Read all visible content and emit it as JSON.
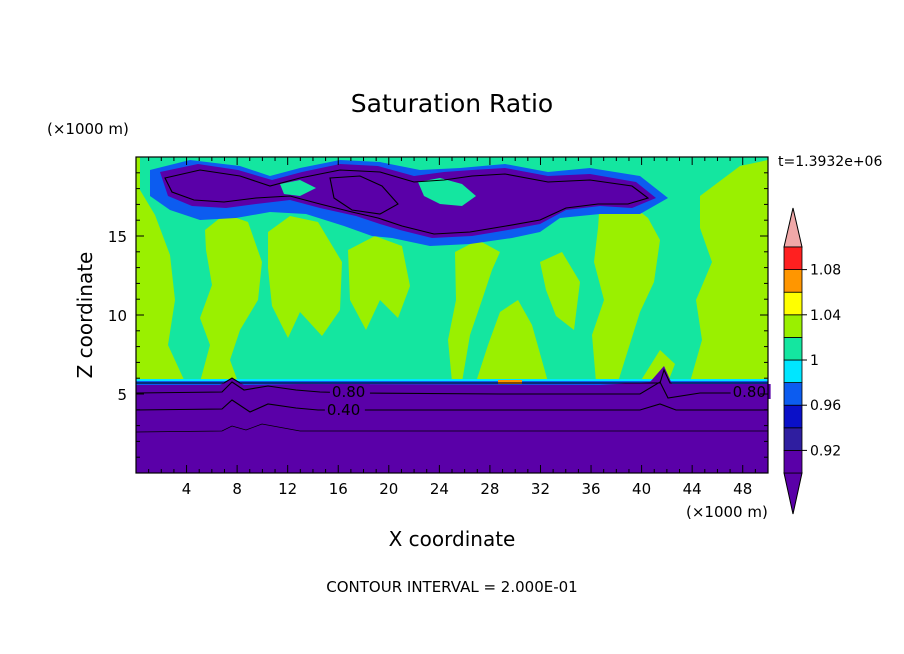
{
  "chart_data": {
    "type": "heatmap",
    "title": "Saturation Ratio",
    "xlabel": "X coordinate",
    "ylabel": "Z coordinate",
    "x_unit": "(×1000 m)",
    "y_unit": "(×1000 m)",
    "time_label": "t=1.3932e+06",
    "footer": "CONTOUR INTERVAL = 2.000E-01",
    "xlim": [
      0,
      50
    ],
    "ylim": [
      0,
      20
    ],
    "x_ticks": [
      4,
      8,
      12,
      16,
      20,
      24,
      28,
      32,
      36,
      40,
      44,
      48
    ],
    "y_ticks": [
      5,
      10,
      15
    ],
    "colorbar": {
      "bins": [
        {
          "color": "#5a00a8"
        },
        {
          "color": "#2f1ea0"
        },
        {
          "color": "#0a10c8"
        },
        {
          "color": "#0c5cf0"
        },
        {
          "color": "#00e6ff"
        },
        {
          "color": "#14e6a0"
        },
        {
          "color": "#9af000"
        },
        {
          "color": "#ffff00"
        },
        {
          "color": "#ff9600"
        },
        {
          "color": "#ff2020"
        }
      ],
      "under_color": "#5a00a8",
      "over_color": "#f0a8a8",
      "labels": [
        {
          "value": 0.92,
          "text": "0.92"
        },
        {
          "value": 0.96,
          "text": "0.96"
        },
        {
          "value": 1.0,
          "text": "1"
        },
        {
          "value": 1.04,
          "text": "1.04"
        },
        {
          "value": 1.08,
          "text": "1.08"
        }
      ]
    },
    "contours": [
      {
        "level": 0.8,
        "label": "0.80",
        "label_x": [
          15.5,
          47.2
        ]
      },
      {
        "level": 0.4,
        "label": "0.40",
        "label_x": [
          15.1
        ]
      }
    ]
  }
}
